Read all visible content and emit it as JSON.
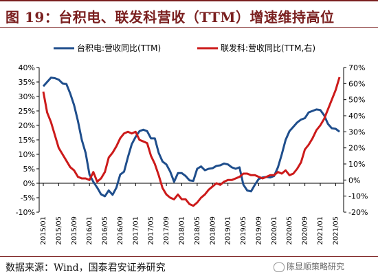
{
  "figure": {
    "title": "图 19：台积电、联发科营收（TTM）增速维持高位",
    "source": "数据来源：Wind，国泰君安证券研究",
    "watermark": "陈显顺策略研究"
  },
  "chart_data": {
    "type": "line",
    "colors": {
      "series0": "#1f4e8c",
      "series1": "#cc1a1a"
    },
    "x_ticks": [
      "2015/01",
      "2015/05",
      "2015/09",
      "2016/01",
      "2016/05",
      "2016/09",
      "2017/01",
      "2017/05",
      "2017/09",
      "2018/01",
      "2018/05",
      "2018/09",
      "2019/01",
      "2019/05",
      "2019/09",
      "2020/01",
      "2020/05",
      "2020/09",
      "2021/01",
      "2021/05"
    ],
    "left_axis": {
      "min": -10,
      "max": 40,
      "step": 5,
      "unit": "%"
    },
    "right_axis": {
      "min": -20,
      "max": 70,
      "step": 10,
      "unit": "%"
    },
    "legend_position": "top",
    "grid": false,
    "series": [
      {
        "name": "台积电:营收同比(TTM)",
        "axis": "left",
        "x": [
          "2015/01",
          "2015/02",
          "2015/03",
          "2015/04",
          "2015/05",
          "2015/06",
          "2015/07",
          "2015/08",
          "2015/09",
          "2015/10",
          "2015/11",
          "2015/12",
          "2016/01",
          "2016/02",
          "2016/03",
          "2016/04",
          "2016/05",
          "2016/06",
          "2016/07",
          "2016/08",
          "2016/09",
          "2016/10",
          "2016/11",
          "2016/12",
          "2017/01",
          "2017/02",
          "2017/03",
          "2017/04",
          "2017/05",
          "2017/06",
          "2017/07",
          "2017/08",
          "2017/09",
          "2017/10",
          "2017/11",
          "2017/12",
          "2018/01",
          "2018/02",
          "2018/03",
          "2018/04",
          "2018/05",
          "2018/06",
          "2018/07",
          "2018/08",
          "2018/09",
          "2018/10",
          "2018/11",
          "2018/12",
          "2019/01",
          "2019/02",
          "2019/03",
          "2019/04",
          "2019/05",
          "2019/06",
          "2019/07",
          "2019/08",
          "2019/09",
          "2019/10",
          "2019/11",
          "2019/12",
          "2020/01",
          "2020/02",
          "2020/03",
          "2020/04",
          "2020/05",
          "2020/06",
          "2020/07",
          "2020/08",
          "2020/09",
          "2020/10",
          "2020/11",
          "2020/12",
          "2021/01",
          "2021/02",
          "2021/03",
          "2021/04",
          "2021/05",
          "2021/06"
        ],
        "values": [
          33.5,
          35.0,
          36.5,
          36.3,
          35.8,
          34.5,
          34.3,
          31.0,
          27.0,
          21.5,
          15.0,
          10.5,
          3.0,
          0.5,
          -1.5,
          -3.8,
          -4.5,
          -2.5,
          -4.0,
          -1.5,
          3.0,
          4.0,
          9.0,
          13.5,
          16.0,
          18.0,
          18.5,
          18.0,
          15.5,
          15.5,
          10.5,
          7.5,
          6.5,
          4.0,
          0.5,
          3.5,
          3.5,
          2.5,
          1.0,
          0.8,
          5.0,
          5.8,
          4.5,
          5.0,
          5.2,
          6.0,
          6.2,
          6.8,
          6.5,
          5.5,
          5.0,
          5.5,
          -0.5,
          -2.5,
          -2.8,
          -0.5,
          1.5,
          2.0,
          2.2,
          2.0,
          2.5,
          5.5,
          10.0,
          15.0,
          18.0,
          19.5,
          21.0,
          22.0,
          22.5,
          24.5,
          25.0,
          25.5,
          25.3,
          23.5,
          20.5,
          19.0,
          18.8,
          17.8
        ]
      },
      {
        "name": "联发科:营收同比(TTM,右)",
        "axis": "right",
        "x": [
          "2015/01",
          "2015/02",
          "2015/03",
          "2015/04",
          "2015/05",
          "2015/06",
          "2015/07",
          "2015/08",
          "2015/09",
          "2015/10",
          "2015/11",
          "2015/12",
          "2016/01",
          "2016/02",
          "2016/03",
          "2016/04",
          "2016/05",
          "2016/06",
          "2016/07",
          "2016/08",
          "2016/09",
          "2016/10",
          "2016/11",
          "2016/12",
          "2017/01",
          "2017/02",
          "2017/03",
          "2017/04",
          "2017/05",
          "2017/06",
          "2017/07",
          "2017/08",
          "2017/09",
          "2017/10",
          "2017/11",
          "2017/12",
          "2018/01",
          "2018/02",
          "2018/03",
          "2018/04",
          "2018/05",
          "2018/06",
          "2018/07",
          "2018/08",
          "2018/09",
          "2018/10",
          "2018/11",
          "2018/12",
          "2019/01",
          "2019/02",
          "2019/03",
          "2019/04",
          "2019/05",
          "2019/06",
          "2019/07",
          "2019/08",
          "2019/09",
          "2019/10",
          "2019/11",
          "2019/12",
          "2020/01",
          "2020/02",
          "2020/03",
          "2020/04",
          "2020/05",
          "2020/06",
          "2020/07",
          "2020/08",
          "2020/09",
          "2020/10",
          "2020/11",
          "2020/12",
          "2021/01",
          "2021/02",
          "2021/03",
          "2021/04",
          "2021/05",
          "2021/06"
        ],
        "values": [
          55,
          42,
          36,
          28,
          20,
          16,
          12,
          8,
          6,
          2,
          1,
          1,
          0,
          5,
          -1,
          1,
          5,
          14,
          17,
          21,
          26,
          29,
          30,
          29,
          30,
          25,
          24,
          23,
          15,
          10,
          3,
          -5,
          -9,
          -11,
          -12,
          -9,
          -12,
          -12,
          -15,
          -16,
          -14,
          -11,
          -9,
          -6,
          -4,
          -2,
          -3,
          -1,
          0,
          0,
          1,
          2,
          4,
          4,
          3,
          3,
          2,
          1,
          2,
          3,
          3,
          5,
          4,
          6,
          3,
          4,
          7,
          11,
          19,
          22,
          26,
          31,
          34,
          38,
          44,
          50,
          56,
          64
        ]
      }
    ]
  }
}
